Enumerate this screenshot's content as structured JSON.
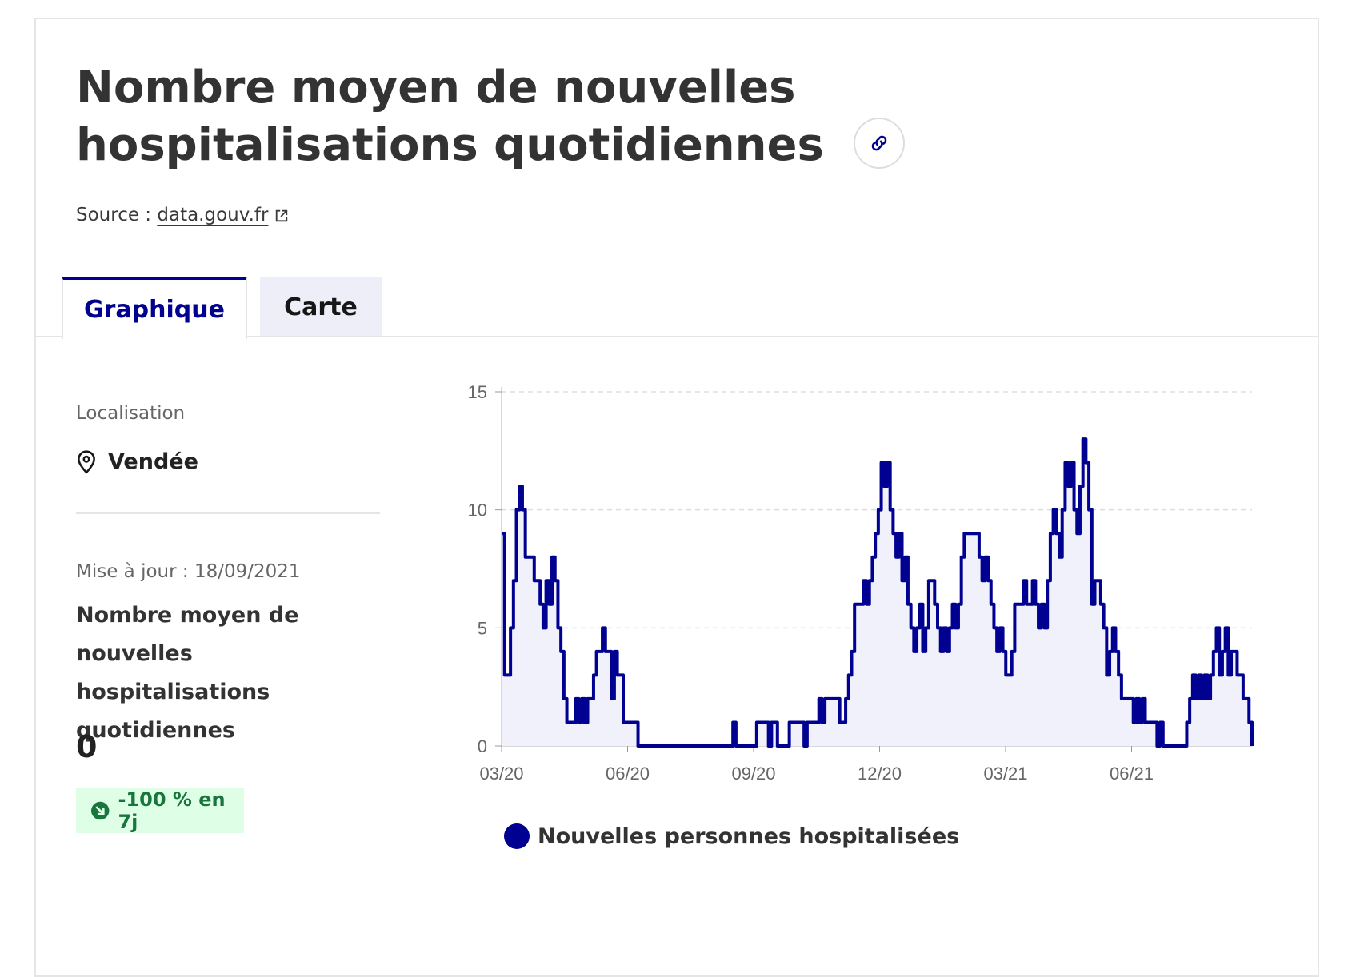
{
  "header": {
    "title": "Nombre moyen de nouvelles hospitalisations quotidiennes",
    "link_icon": "link-icon",
    "source_prefix": "Source :",
    "source_link": "data.gouv.fr",
    "external_icon": "external-link-icon"
  },
  "tabs": [
    {
      "label": "Graphique",
      "active": true
    },
    {
      "label": "Carte",
      "active": false
    }
  ],
  "sidebar": {
    "location_label": "Localisation",
    "location_value": "Vendée",
    "location_icon": "map-pin-icon",
    "update_text": "Mise à jour : 18/09/2021",
    "metric_title": "Nombre moyen de nouvelles hospitalisations quotidiennes",
    "metric_value": "0",
    "trend_text": "-100 % en 7j",
    "trend_icon": "arrow-down-right-icon"
  },
  "colors": {
    "accent": "#000091",
    "fill": "#f1f1fb",
    "trend_bg": "#dffee6",
    "trend_fg": "#18753c"
  },
  "chart_data": {
    "type": "line",
    "series": [
      {
        "name": "Nouvelles personnes hospitalisées",
        "values": [
          [
            0,
            9
          ],
          [
            1,
            3
          ],
          [
            2,
            3
          ],
          [
            3,
            5
          ],
          [
            4,
            7
          ],
          [
            5,
            10
          ],
          [
            6,
            11
          ],
          [
            7,
            10
          ],
          [
            8,
            8
          ],
          [
            10,
            8
          ],
          [
            11,
            7
          ],
          [
            12,
            7
          ],
          [
            13,
            6
          ],
          [
            14,
            5
          ],
          [
            15,
            7
          ],
          [
            16,
            6
          ],
          [
            17,
            8
          ],
          [
            18,
            7
          ],
          [
            19,
            5
          ],
          [
            20,
            4
          ],
          [
            21,
            2
          ],
          [
            22,
            1
          ],
          [
            24,
            1
          ],
          [
            25,
            2
          ],
          [
            26,
            1
          ],
          [
            27,
            2
          ],
          [
            28,
            1
          ],
          [
            29,
            2
          ],
          [
            30,
            2
          ],
          [
            31,
            3
          ],
          [
            32,
            4
          ],
          [
            33,
            4
          ],
          [
            34,
            5
          ],
          [
            35,
            4
          ],
          [
            36,
            4
          ],
          [
            37,
            2
          ],
          [
            38,
            4
          ],
          [
            39,
            3
          ],
          [
            40,
            3
          ],
          [
            41,
            1
          ],
          [
            45,
            1
          ],
          [
            46,
            0
          ],
          [
            77,
            0
          ],
          [
            78,
            1
          ],
          [
            79,
            0
          ],
          [
            85,
            0
          ],
          [
            86,
            1
          ],
          [
            89,
            1
          ],
          [
            90,
            0
          ],
          [
            91,
            1
          ],
          [
            92,
            1
          ],
          [
            93,
            0
          ],
          [
            96,
            0
          ],
          [
            97,
            1
          ],
          [
            101,
            1
          ],
          [
            102,
            0
          ],
          [
            103,
            1
          ],
          [
            106,
            1
          ],
          [
            107,
            2
          ],
          [
            108,
            1
          ],
          [
            109,
            2
          ],
          [
            113,
            2
          ],
          [
            114,
            1
          ],
          [
            115,
            1
          ],
          [
            116,
            2
          ],
          [
            117,
            3
          ],
          [
            118,
            4
          ],
          [
            119,
            6
          ],
          [
            121,
            6
          ],
          [
            122,
            7
          ],
          [
            123,
            6
          ],
          [
            124,
            7
          ],
          [
            125,
            8
          ],
          [
            126,
            9
          ],
          [
            127,
            10
          ],
          [
            128,
            12
          ],
          [
            129,
            11
          ],
          [
            130,
            12
          ],
          [
            131,
            10
          ],
          [
            132,
            9
          ],
          [
            133,
            8
          ],
          [
            134,
            9
          ],
          [
            135,
            7
          ],
          [
            136,
            8
          ],
          [
            137,
            6
          ],
          [
            138,
            5
          ],
          [
            139,
            4
          ],
          [
            140,
            5
          ],
          [
            141,
            6
          ],
          [
            142,
            4
          ],
          [
            143,
            5
          ],
          [
            144,
            7
          ],
          [
            146,
            6
          ],
          [
            147,
            5
          ],
          [
            148,
            4
          ],
          [
            149,
            5
          ],
          [
            150,
            4
          ],
          [
            151,
            5
          ],
          [
            152,
            6
          ],
          [
            153,
            5
          ],
          [
            154,
            6
          ],
          [
            155,
            8
          ],
          [
            156,
            9
          ],
          [
            160,
            9
          ],
          [
            161,
            8
          ],
          [
            162,
            7
          ],
          [
            163,
            8
          ],
          [
            164,
            7
          ],
          [
            165,
            6
          ],
          [
            166,
            5
          ],
          [
            167,
            4
          ],
          [
            168,
            5
          ],
          [
            169,
            4
          ],
          [
            170,
            3
          ],
          [
            171,
            3
          ],
          [
            172,
            4
          ],
          [
            173,
            6
          ],
          [
            175,
            6
          ],
          [
            176,
            7
          ],
          [
            177,
            6
          ],
          [
            178,
            6
          ],
          [
            179,
            7
          ],
          [
            180,
            6
          ],
          [
            181,
            5
          ],
          [
            182,
            6
          ],
          [
            183,
            5
          ],
          [
            184,
            7
          ],
          [
            185,
            9
          ],
          [
            186,
            10
          ],
          [
            187,
            9
          ],
          [
            188,
            8
          ],
          [
            189,
            10
          ],
          [
            190,
            12
          ],
          [
            191,
            11
          ],
          [
            192,
            12
          ],
          [
            193,
            10
          ],
          [
            194,
            9
          ],
          [
            195,
            11
          ],
          [
            196,
            13
          ],
          [
            197,
            12
          ],
          [
            198,
            10
          ],
          [
            199,
            6
          ],
          [
            200,
            7
          ],
          [
            201,
            7
          ],
          [
            202,
            6
          ],
          [
            203,
            5
          ],
          [
            204,
            3
          ],
          [
            205,
            4
          ],
          [
            206,
            5
          ],
          [
            207,
            4
          ],
          [
            208,
            3
          ],
          [
            209,
            2
          ],
          [
            212,
            2
          ],
          [
            213,
            1
          ],
          [
            214,
            2
          ],
          [
            215,
            1
          ],
          [
            216,
            2
          ],
          [
            217,
            1
          ],
          [
            220,
            1
          ],
          [
            221,
            0
          ],
          [
            222,
            1
          ],
          [
            223,
            0
          ],
          [
            230,
            0
          ],
          [
            231,
            1
          ],
          [
            232,
            2
          ],
          [
            233,
            3
          ],
          [
            234,
            2
          ],
          [
            235,
            3
          ],
          [
            236,
            2
          ],
          [
            237,
            3
          ],
          [
            238,
            2
          ],
          [
            239,
            3
          ],
          [
            240,
            4
          ],
          [
            241,
            5
          ],
          [
            242,
            3
          ],
          [
            243,
            4
          ],
          [
            244,
            5
          ],
          [
            245,
            3
          ],
          [
            246,
            4
          ],
          [
            247,
            4
          ],
          [
            248,
            3
          ],
          [
            249,
            3
          ],
          [
            250,
            2
          ],
          [
            251,
            2
          ],
          [
            252,
            1
          ],
          [
            253,
            0
          ]
        ]
      }
    ],
    "x_ticks": [
      "03/20",
      "06/20",
      "09/20",
      "12/20",
      "03/21",
      "06/21"
    ],
    "y_ticks": [
      "0",
      "5",
      "10",
      "15"
    ],
    "ylim": [
      0,
      15
    ],
    "grid": true,
    "legend": "bottom"
  }
}
